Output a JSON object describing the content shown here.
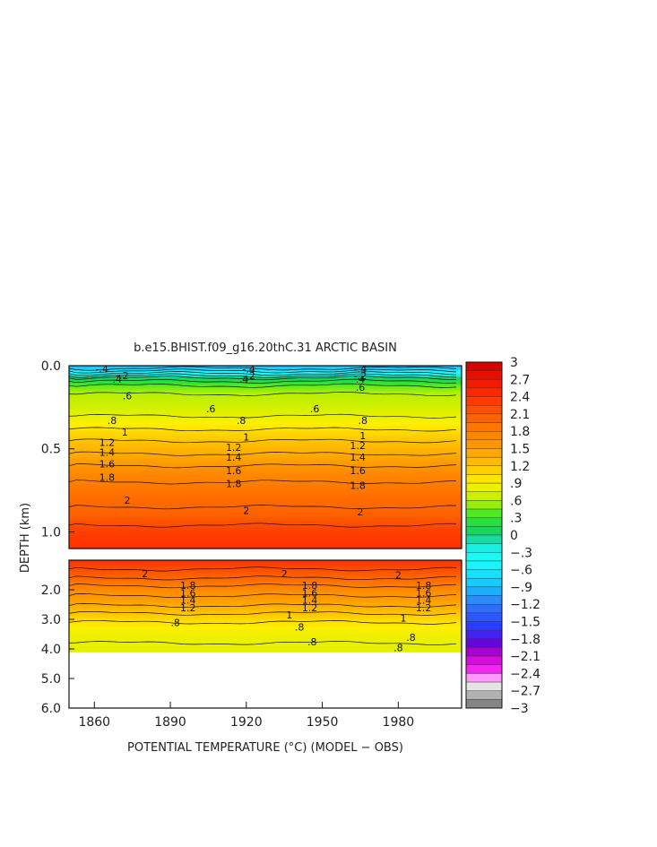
{
  "chart_data": {
    "type": "heatmap",
    "title": "b.e15.BHIST.f09_g16.20thC.31 ARCTIC BASIN",
    "xlabel": "POTENTIAL TEMPERATURE (°C) (MODEL − OBS)",
    "ylabel": "DEPTH (km)",
    "x_ticks": [
      "1860",
      "1890",
      "1920",
      "1950",
      "1980"
    ],
    "x_tick_values": [
      1860,
      1890,
      1920,
      1950,
      1980
    ],
    "xlim": [
      1850,
      2005
    ],
    "upper_panel": {
      "ylim": [
        0.0,
        1.1
      ],
      "y_ticks": [
        "0.0",
        "0.5",
        "1.0"
      ],
      "y_tick_values": [
        0.0,
        0.5,
        1.0
      ],
      "profile": [
        {
          "depth": 0.0,
          "value": -1.0
        },
        {
          "depth": 0.04,
          "value": -0.5
        },
        {
          "depth": 0.08,
          "value": 0.1
        },
        {
          "depth": 0.12,
          "value": 0.4
        },
        {
          "depth": 0.17,
          "value": 0.6
        },
        {
          "depth": 0.25,
          "value": 0.7
        },
        {
          "depth": 0.33,
          "value": 0.85
        },
        {
          "depth": 0.4,
          "value": 1.05
        },
        {
          "depth": 0.47,
          "value": 1.25
        },
        {
          "depth": 0.55,
          "value": 1.45
        },
        {
          "depth": 0.62,
          "value": 1.65
        },
        {
          "depth": 0.7,
          "value": 1.8
        },
        {
          "depth": 0.8,
          "value": 1.95
        },
        {
          "depth": 0.9,
          "value": 2.05
        },
        {
          "depth": 1.0,
          "value": 2.3
        },
        {
          "depth": 1.1,
          "value": 2.4
        }
      ],
      "contour_labels": [
        {
          "year": 1863,
          "depth": 0.02,
          "text": "-.4"
        },
        {
          "year": 1921,
          "depth": 0.02,
          "text": "-.4"
        },
        {
          "year": 1965,
          "depth": 0.02,
          "text": "-.4"
        },
        {
          "year": 1871,
          "depth": 0.06,
          "text": "-.2"
        },
        {
          "year": 1921,
          "depth": 0.06,
          "text": "-.2"
        },
        {
          "year": 1965,
          "depth": 0.06,
          "text": "-.2"
        },
        {
          "year": 1869,
          "depth": 0.08,
          "text": ".4"
        },
        {
          "year": 1919,
          "depth": 0.08,
          "text": ".4"
        },
        {
          "year": 1965,
          "depth": 0.08,
          "text": ".4"
        },
        {
          "year": 1873,
          "depth": 0.18,
          "text": ".6"
        },
        {
          "year": 1906,
          "depth": 0.26,
          "text": ".6"
        },
        {
          "year": 1947,
          "depth": 0.26,
          "text": ".6"
        },
        {
          "year": 1965,
          "depth": 0.13,
          "text": ".6"
        },
        {
          "year": 1867,
          "depth": 0.33,
          "text": ".8"
        },
        {
          "year": 1918,
          "depth": 0.33,
          "text": ".8"
        },
        {
          "year": 1966,
          "depth": 0.33,
          "text": ".8"
        },
        {
          "year": 1872,
          "depth": 0.4,
          "text": "1"
        },
        {
          "year": 1920,
          "depth": 0.43,
          "text": "1"
        },
        {
          "year": 1966,
          "depth": 0.42,
          "text": "1"
        },
        {
          "year": 1865,
          "depth": 0.46,
          "text": "1.2"
        },
        {
          "year": 1915,
          "depth": 0.49,
          "text": "1.2"
        },
        {
          "year": 1964,
          "depth": 0.48,
          "text": "1.2"
        },
        {
          "year": 1865,
          "depth": 0.52,
          "text": "1.4"
        },
        {
          "year": 1915,
          "depth": 0.55,
          "text": "1.4"
        },
        {
          "year": 1964,
          "depth": 0.55,
          "text": "1.4"
        },
        {
          "year": 1865,
          "depth": 0.59,
          "text": "1.6"
        },
        {
          "year": 1915,
          "depth": 0.63,
          "text": "1.6"
        },
        {
          "year": 1964,
          "depth": 0.63,
          "text": "1.6"
        },
        {
          "year": 1865,
          "depth": 0.67,
          "text": "1.8"
        },
        {
          "year": 1915,
          "depth": 0.71,
          "text": "1.8"
        },
        {
          "year": 1964,
          "depth": 0.72,
          "text": "1.8"
        },
        {
          "year": 1873,
          "depth": 0.81,
          "text": "2"
        },
        {
          "year": 1920,
          "depth": 0.87,
          "text": "2"
        },
        {
          "year": 1965,
          "depth": 0.88,
          "text": "2"
        }
      ]
    },
    "lower_panel": {
      "ylim": [
        1.0,
        6.0
      ],
      "y_ticks": [
        "2.0",
        "3.0",
        "4.0",
        "5.0",
        "6.0"
      ],
      "y_tick_values": [
        2.0,
        3.0,
        4.0,
        5.0,
        6.0
      ],
      "data_bottom_depth": 4.1,
      "profile": [
        {
          "depth": 1.0,
          "value": 2.4
        },
        {
          "depth": 1.3,
          "value": 2.2
        },
        {
          "depth": 1.6,
          "value": 2.0
        },
        {
          "depth": 2.0,
          "value": 1.7
        },
        {
          "depth": 2.4,
          "value": 1.5
        },
        {
          "depth": 2.8,
          "value": 1.2
        },
        {
          "depth": 3.1,
          "value": 1.0
        },
        {
          "depth": 3.4,
          "value": 0.85
        },
        {
          "depth": 3.8,
          "value": 0.8
        },
        {
          "depth": 4.1,
          "value": 0.78
        }
      ],
      "contour_labels": [
        {
          "year": 1880,
          "depth": 1.45,
          "text": "2"
        },
        {
          "year": 1935,
          "depth": 1.45,
          "text": "2"
        },
        {
          "year": 1980,
          "depth": 1.5,
          "text": "2"
        },
        {
          "year": 1897,
          "depth": 1.85,
          "text": "1.8"
        },
        {
          "year": 1897,
          "depth": 2.1,
          "text": "1.6"
        },
        {
          "year": 1897,
          "depth": 2.35,
          "text": "1.4"
        },
        {
          "year": 1897,
          "depth": 2.6,
          "text": "1.2"
        },
        {
          "year": 1945,
          "depth": 1.85,
          "text": "1.8"
        },
        {
          "year": 1945,
          "depth": 2.1,
          "text": "1.6"
        },
        {
          "year": 1945,
          "depth": 2.35,
          "text": "1.4"
        },
        {
          "year": 1945,
          "depth": 2.6,
          "text": "1.2"
        },
        {
          "year": 1990,
          "depth": 1.85,
          "text": "1.8"
        },
        {
          "year": 1990,
          "depth": 2.1,
          "text": "1.6"
        },
        {
          "year": 1990,
          "depth": 2.35,
          "text": "1.4"
        },
        {
          "year": 1990,
          "depth": 2.6,
          "text": "1.2"
        },
        {
          "year": 1937,
          "depth": 2.85,
          "text": "1"
        },
        {
          "year": 1982,
          "depth": 2.95,
          "text": "1"
        },
        {
          "year": 1892,
          "depth": 3.1,
          "text": ".8"
        },
        {
          "year": 1941,
          "depth": 3.25,
          "text": ".8"
        },
        {
          "year": 1946,
          "depth": 3.75,
          "text": ".8"
        },
        {
          "year": 1985,
          "depth": 3.6,
          "text": ".8"
        },
        {
          "year": 1980,
          "depth": 3.95,
          "text": ".8"
        }
      ]
    },
    "colorbar": {
      "min": -3,
      "max": 3,
      "step": 0.15,
      "labels": [
        "3",
        "2.7",
        "2.4",
        "2.1",
        "1.8",
        "1.5",
        "1.2",
        ".9",
        ".6",
        ".3",
        "0",
        "−.3",
        "−.6",
        "−.9",
        "−1.2",
        "−1.5",
        "−1.8",
        "−2.1",
        "−2.4",
        "−2.7",
        "−3"
      ],
      "label_values": [
        3,
        2.7,
        2.4,
        2.1,
        1.8,
        1.5,
        1.2,
        0.9,
        0.6,
        0.3,
        0,
        -0.3,
        -0.6,
        -0.9,
        -1.2,
        -1.5,
        -1.8,
        -2.1,
        -2.4,
        -2.7,
        -3
      ]
    },
    "palette": [
      {
        "v": -3.0,
        "c": "#6e6e6e"
      },
      {
        "v": -2.7,
        "c": "#c8c8c8"
      },
      {
        "v": -2.55,
        "c": "#ffffff"
      },
      {
        "v": -2.4,
        "c": "#ff33ff"
      },
      {
        "v": -2.1,
        "c": "#cc00cc"
      },
      {
        "v": -1.9,
        "c": "#6a00d8"
      },
      {
        "v": -1.6,
        "c": "#2a3aff"
      },
      {
        "v": -1.2,
        "c": "#2e7aff"
      },
      {
        "v": -0.9,
        "c": "#19bfff"
      },
      {
        "v": -0.45,
        "c": "#19ffff"
      },
      {
        "v": -0.15,
        "c": "#19e8d8"
      },
      {
        "v": 0.0,
        "c": "#14cf6a"
      },
      {
        "v": 0.3,
        "c": "#2ee62e"
      },
      {
        "v": 0.6,
        "c": "#b8f000"
      },
      {
        "v": 0.9,
        "c": "#fff000"
      },
      {
        "v": 1.2,
        "c": "#ffc400"
      },
      {
        "v": 1.5,
        "c": "#ffa000"
      },
      {
        "v": 1.8,
        "c": "#ff7f00"
      },
      {
        "v": 2.1,
        "c": "#ff5a00"
      },
      {
        "v": 2.4,
        "c": "#ff3000"
      },
      {
        "v": 2.7,
        "c": "#ee1500"
      },
      {
        "v": 3.0,
        "c": "#c80000"
      }
    ]
  }
}
